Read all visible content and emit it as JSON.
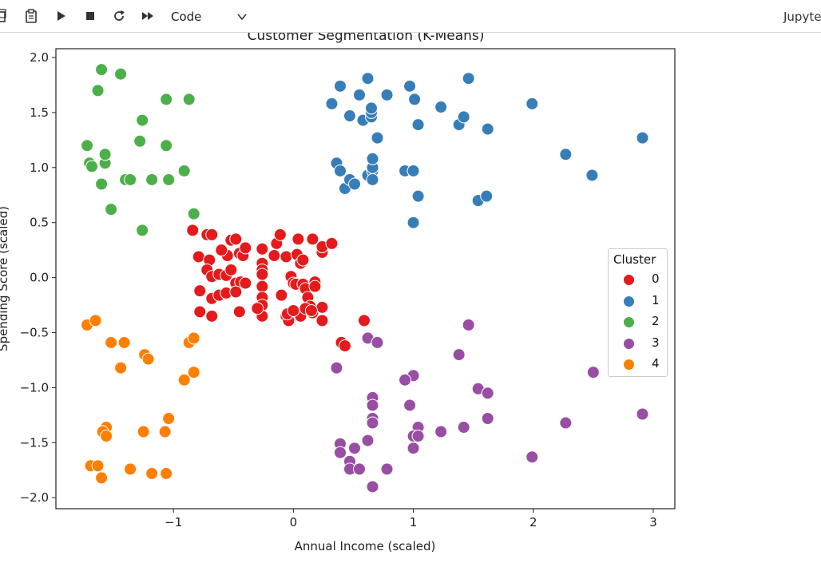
{
  "toolbar": {
    "buttons": [
      {
        "name": "copy-icon"
      },
      {
        "name": "paste-icon"
      },
      {
        "name": "run-icon"
      },
      {
        "name": "stop-icon"
      },
      {
        "name": "restart-icon"
      },
      {
        "name": "restart-run-all-icon"
      }
    ],
    "cell_type": "Code",
    "kernel": "Jupyte"
  },
  "chart_data": {
    "type": "scatter",
    "title": "Customer Segmentation (K-Means)",
    "xlabel": "Annual Income (scaled)",
    "ylabel": "Spending Score (scaled)",
    "xlim": [
      -1.98,
      3.18
    ],
    "ylim": [
      -2.1,
      2.08
    ],
    "xticks": [
      -1,
      0,
      1,
      2,
      3
    ],
    "yticks": [
      -2.0,
      -1.5,
      -1.0,
      -0.5,
      0.0,
      0.5,
      1.0,
      1.5,
      2.0
    ],
    "xtick_labels": [
      "−1",
      "0",
      "1",
      "2",
      "3"
    ],
    "ytick_labels": [
      "−2.0",
      "−1.5",
      "−1.0",
      "−0.5",
      "0.0",
      "0.5",
      "1.0",
      "1.5",
      "2.0"
    ],
    "grid": false,
    "legend": {
      "title": "Cluster",
      "placement": "right"
    },
    "series": [
      {
        "name": "0",
        "color": "#e41a1c",
        "points": [
          [
            -0.84,
            0.43
          ],
          [
            -0.72,
            0.39
          ],
          [
            -0.68,
            0.39
          ],
          [
            -0.79,
            0.19
          ],
          [
            -0.7,
            0.16
          ],
          [
            -0.55,
            0.2
          ],
          [
            -0.52,
            0.34
          ],
          [
            -0.48,
            0.35
          ],
          [
            -0.45,
            0.22
          ],
          [
            -0.42,
            0.2
          ],
          [
            -0.4,
            0.27
          ],
          [
            -0.26,
            0.26
          ],
          [
            -0.26,
            0.13
          ],
          [
            -0.26,
            0.07
          ],
          [
            -0.26,
            0.03
          ],
          [
            -0.16,
            0.2
          ],
          [
            -0.14,
            0.31
          ],
          [
            -0.11,
            0.39
          ],
          [
            -0.06,
            0.19
          ],
          [
            0.04,
            0.35
          ],
          [
            0.03,
            0.21
          ],
          [
            0.06,
            0.13
          ],
          [
            0.08,
            0.16
          ],
          [
            0.16,
            0.35
          ],
          [
            0.24,
            0.23
          ],
          [
            0.24,
            0.28
          ],
          [
            0.32,
            0.31
          ],
          [
            -0.78,
            -0.12
          ],
          [
            -0.72,
            0.07
          ],
          [
            -0.68,
            0.01
          ],
          [
            -0.62,
            0.03
          ],
          [
            -0.56,
            0.02
          ],
          [
            -0.52,
            0.07
          ],
          [
            -0.48,
            -0.05
          ],
          [
            -0.44,
            -0.04
          ],
          [
            -0.4,
            -0.05
          ],
          [
            -0.26,
            -0.08
          ],
          [
            -0.26,
            -0.18
          ],
          [
            -0.26,
            -0.25
          ],
          [
            -0.26,
            -0.35
          ],
          [
            -0.1,
            -0.16
          ],
          [
            -0.06,
            -0.35
          ],
          [
            -0.04,
            -0.39
          ],
          [
            -0.02,
            0.01
          ],
          [
            0.0,
            -0.05
          ],
          [
            0.02,
            -0.06
          ],
          [
            0.04,
            -0.32
          ],
          [
            0.06,
            -0.35
          ],
          [
            0.08,
            -0.06
          ],
          [
            0.1,
            -0.1
          ],
          [
            0.12,
            -0.18
          ],
          [
            0.14,
            -0.26
          ],
          [
            0.16,
            -0.32
          ],
          [
            0.18,
            -0.04
          ],
          [
            0.18,
            -0.08
          ],
          [
            0.24,
            -0.27
          ],
          [
            0.24,
            -0.39
          ],
          [
            -0.78,
            -0.31
          ],
          [
            -0.68,
            -0.19
          ],
          [
            -0.68,
            -0.35
          ],
          [
            -0.62,
            -0.16
          ],
          [
            -0.56,
            -0.14
          ],
          [
            -0.48,
            -0.13
          ],
          [
            -0.45,
            -0.31
          ],
          [
            0.4,
            -0.59
          ],
          [
            0.43,
            -0.62
          ],
          [
            0.59,
            -0.39
          ],
          [
            -0.05,
            -0.33
          ],
          [
            0.0,
            -0.3
          ],
          [
            0.1,
            -0.28
          ],
          [
            0.15,
            -0.3
          ],
          [
            -0.6,
            0.25
          ],
          [
            -0.3,
            -0.28
          ]
        ]
      },
      {
        "name": "1",
        "color": "#377eb8",
        "points": [
          [
            0.32,
            1.58
          ],
          [
            0.39,
            1.74
          ],
          [
            0.47,
            1.47
          ],
          [
            0.55,
            1.66
          ],
          [
            0.58,
            1.43
          ],
          [
            0.62,
            1.81
          ],
          [
            0.65,
            1.46
          ],
          [
            0.65,
            1.5
          ],
          [
            0.65,
            1.54
          ],
          [
            0.7,
            1.27
          ],
          [
            0.78,
            1.66
          ],
          [
            0.97,
            1.74
          ],
          [
            1.01,
            1.62
          ],
          [
            1.04,
            1.39
          ],
          [
            1.23,
            1.55
          ],
          [
            1.38,
            1.39
          ],
          [
            1.42,
            1.46
          ],
          [
            1.46,
            1.81
          ],
          [
            1.62,
            1.35
          ],
          [
            1.99,
            1.58
          ],
          [
            2.27,
            1.12
          ],
          [
            2.91,
            1.27
          ],
          [
            0.36,
            1.04
          ],
          [
            0.39,
            0.97
          ],
          [
            0.43,
            0.81
          ],
          [
            0.47,
            0.89
          ],
          [
            0.51,
            0.85
          ],
          [
            0.62,
            0.93
          ],
          [
            0.66,
            0.97
          ],
          [
            0.66,
            1.0
          ],
          [
            0.66,
            1.08
          ],
          [
            0.66,
            0.89
          ],
          [
            0.93,
            0.97
          ],
          [
            1.0,
            0.97
          ],
          [
            1.04,
            0.74
          ],
          [
            1.54,
            0.7
          ],
          [
            1.61,
            0.74
          ],
          [
            2.49,
            0.93
          ],
          [
            1.0,
            0.5
          ]
        ]
      },
      {
        "name": "2",
        "color": "#4daf4a",
        "points": [
          [
            -1.6,
            1.89
          ],
          [
            -1.63,
            1.7
          ],
          [
            -1.44,
            1.85
          ],
          [
            -1.26,
            1.43
          ],
          [
            -1.06,
            1.62
          ],
          [
            -0.87,
            1.62
          ],
          [
            -1.72,
            1.2
          ],
          [
            -1.7,
            1.04
          ],
          [
            -1.68,
            1.01
          ],
          [
            -1.57,
            1.04
          ],
          [
            -1.57,
            1.12
          ],
          [
            -1.28,
            1.24
          ],
          [
            -1.06,
            1.2
          ],
          [
            -1.4,
            0.89
          ],
          [
            -1.36,
            0.89
          ],
          [
            -1.18,
            0.89
          ],
          [
            -1.04,
            0.89
          ],
          [
            -0.91,
            0.97
          ],
          [
            -1.6,
            0.85
          ],
          [
            -1.52,
            0.62
          ],
          [
            -0.83,
            0.58
          ],
          [
            -1.26,
            0.43
          ]
        ]
      },
      {
        "name": "3",
        "color": "#984ea3",
        "points": [
          [
            1.46,
            -0.43
          ],
          [
            0.62,
            -0.55
          ],
          [
            0.7,
            -0.59
          ],
          [
            1.38,
            -0.7
          ],
          [
            0.36,
            -0.82
          ],
          [
            2.5,
            -0.86
          ],
          [
            1.0,
            -0.89
          ],
          [
            0.93,
            -0.93
          ],
          [
            1.54,
            -1.01
          ],
          [
            1.62,
            -1.05
          ],
          [
            0.66,
            -1.09
          ],
          [
            0.66,
            -1.16
          ],
          [
            0.97,
            -1.16
          ],
          [
            0.66,
            -1.28
          ],
          [
            0.66,
            -1.32
          ],
          [
            1.62,
            -1.28
          ],
          [
            2.27,
            -1.32
          ],
          [
            2.91,
            -1.24
          ],
          [
            1.04,
            -1.36
          ],
          [
            1.23,
            -1.4
          ],
          [
            1.42,
            -1.36
          ],
          [
            1.0,
            -1.44
          ],
          [
            1.04,
            -1.44
          ],
          [
            0.62,
            -1.48
          ],
          [
            0.39,
            -1.51
          ],
          [
            0.51,
            -1.55
          ],
          [
            0.39,
            -1.59
          ],
          [
            0.47,
            -1.67
          ],
          [
            0.47,
            -1.74
          ],
          [
            0.55,
            -1.74
          ],
          [
            0.78,
            -1.74
          ],
          [
            1.0,
            -1.55
          ],
          [
            1.99,
            -1.63
          ],
          [
            0.66,
            -1.9
          ]
        ]
      },
      {
        "name": "4",
        "color": "#ff7f00",
        "points": [
          [
            -1.72,
            -0.43
          ],
          [
            -1.65,
            -0.39
          ],
          [
            -1.52,
            -0.59
          ],
          [
            -1.41,
            -0.59
          ],
          [
            -1.24,
            -0.7
          ],
          [
            -1.21,
            -0.74
          ],
          [
            -1.44,
            -0.82
          ],
          [
            -0.87,
            -0.59
          ],
          [
            -0.83,
            -0.55
          ],
          [
            -0.83,
            -0.86
          ],
          [
            -0.91,
            -0.93
          ],
          [
            -1.04,
            -1.28
          ],
          [
            -1.07,
            -1.4
          ],
          [
            -1.25,
            -1.4
          ],
          [
            -1.56,
            -1.36
          ],
          [
            -1.59,
            -1.4
          ],
          [
            -1.56,
            -1.44
          ],
          [
            -1.69,
            -1.71
          ],
          [
            -1.63,
            -1.71
          ],
          [
            -1.36,
            -1.74
          ],
          [
            -1.18,
            -1.78
          ],
          [
            -1.06,
            -1.78
          ],
          [
            -1.6,
            -1.82
          ]
        ]
      }
    ]
  }
}
